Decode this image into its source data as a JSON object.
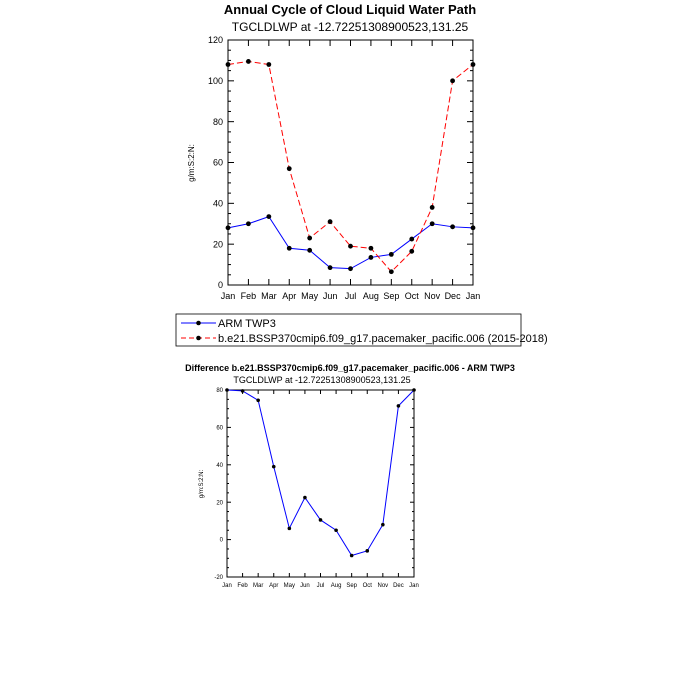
{
  "chart_data": [
    {
      "type": "line",
      "title": "Annual Cycle of Cloud Liquid Water Path",
      "subtitle": "TGCLDLWP at -12.72251308900523,131.25",
      "xlabel": "",
      "ylabel": "g/m:S:2:N:",
      "categories": [
        "Jan",
        "Feb",
        "Mar",
        "Apr",
        "May",
        "Jun",
        "Jul",
        "Aug",
        "Sep",
        "Oct",
        "Nov",
        "Dec",
        "Jan"
      ],
      "ylim": [
        0,
        120
      ],
      "yticks": [
        0,
        20,
        40,
        60,
        80,
        100,
        120
      ],
      "grid": false,
      "legend_position": "bottom",
      "series": [
        {
          "name": "ARM TWP3",
          "color": "#0000ff",
          "dash": "solid",
          "values": [
            28,
            30,
            33.5,
            18,
            17,
            8.5,
            8,
            13.5,
            15,
            22.5,
            30,
            28.5,
            28
          ]
        },
        {
          "name": "b.e21.BSSP370cmip6.f09_g17.pacemaker_pacific.006 (2015-2018)",
          "color": "#ff0000",
          "dash": "dashed",
          "values": [
            108,
            109.5,
            108,
            57,
            23,
            31,
            19,
            18,
            6.5,
            16.5,
            38,
            100,
            108
          ]
        }
      ]
    },
    {
      "type": "line",
      "title": "Difference b.e21.BSSP370cmip6.f09_g17.pacemaker_pacific.006 - ARM TWP3",
      "subtitle": "TGCLDLWP at -12.72251308900523,131.25",
      "xlabel": "",
      "ylabel": "g/m:S:2:N:",
      "categories": [
        "Jan",
        "Feb",
        "Mar",
        "Apr",
        "May",
        "Jun",
        "Jul",
        "Aug",
        "Sep",
        "Oct",
        "Nov",
        "Dec",
        "Jan"
      ],
      "ylim": [
        -20,
        80
      ],
      "yticks": [
        -20,
        0,
        20,
        40,
        60,
        80
      ],
      "grid": false,
      "series": [
        {
          "color": "#0000ff",
          "dash": "solid",
          "values": [
            80,
            79.5,
            74.5,
            39,
            6,
            22.5,
            10.5,
            5,
            -8.5,
            -6,
            8,
            71.5,
            80
          ]
        }
      ]
    }
  ]
}
